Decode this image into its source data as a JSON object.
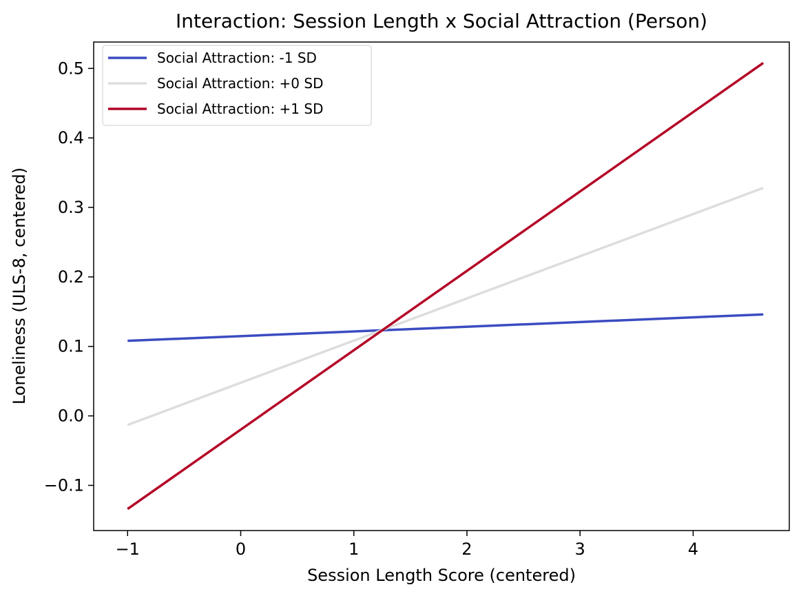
{
  "chart_data": {
    "type": "line",
    "title": "Interaction: Session Length x Social Attraction (Person)",
    "xlabel": "Session Length Score (centered)",
    "ylabel": "Loneliness (ULS-8, centered)",
    "xlim": [
      -1.3,
      4.85
    ],
    "ylim": [
      -0.165,
      0.538
    ],
    "xticks": [
      -1,
      0,
      1,
      2,
      3,
      4
    ],
    "xtick_labels": [
      "−1",
      "0",
      "1",
      "2",
      "3",
      "4"
    ],
    "yticks": [
      -0.1,
      0.0,
      0.1,
      0.2,
      0.3,
      0.4,
      0.5
    ],
    "ytick_labels": [
      "−0.1",
      "0.0",
      "0.1",
      "0.2",
      "0.3",
      "0.4",
      "0.5"
    ],
    "grid": false,
    "legend_position": "upper-left",
    "series": [
      {
        "name": "Social Attraction: -1 SD",
        "color": "#3b4cc0",
        "x": [
          -1.0,
          4.62
        ],
        "y": [
          0.108,
          0.146
        ]
      },
      {
        "name": "Social Attraction: +0 SD",
        "color": "#dddddd",
        "x": [
          -1.0,
          4.62
        ],
        "y": [
          -0.013,
          0.328
        ]
      },
      {
        "name": "Social Attraction: +1 SD",
        "color": "#b40426",
        "x": [
          -1.0,
          4.62
        ],
        "y": [
          -0.134,
          0.508
        ]
      }
    ]
  }
}
